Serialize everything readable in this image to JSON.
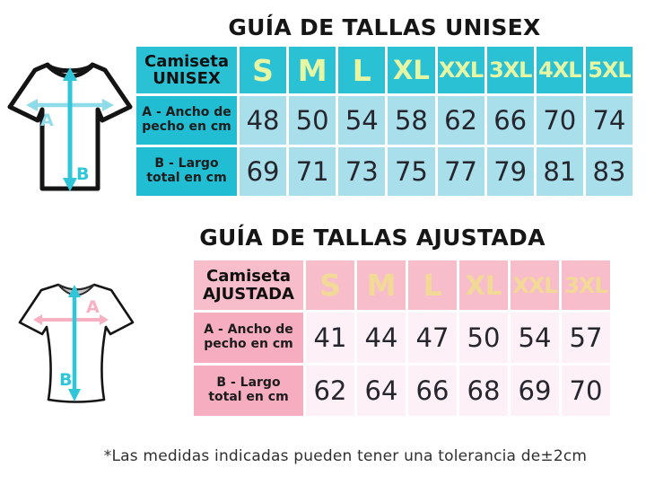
{
  "titles": {
    "unisex": "GUÍA DE TALLAS UNISEX",
    "ajustada": "GUÍA DE TALLAS AJUSTADA"
  },
  "footnote": "*Las medidas indicadas pueden tener una tolerancia de±2cm",
  "diagram": {
    "width_label": "A",
    "length_label": "B"
  },
  "colors": {
    "unisex_header_bg": "#2bc1d5",
    "unisex_label_bg": "#21bdd3",
    "unisex_cell_bg": "#a9dfeb",
    "unisex_size_text": "#e7f6a3",
    "ajustada_header_bg": "#f8bdcb",
    "ajustada_label_bg": "#f6adc0",
    "ajustada_cell_bg": "#fdf0f6",
    "ajustada_size_text": "#f3d996",
    "arrow_cyan": "#2fc6da",
    "arrow_cyan_light": "#8edce9",
    "arrow_pink": "#f7b1c2"
  },
  "chart_data": [
    {
      "type": "table",
      "title": "GUÍA DE TALLAS UNISEX",
      "header": {
        "label_line1": "Camiseta",
        "label_line2": "UNISEX",
        "sizes": [
          "S",
          "M",
          "L",
          "XL",
          "XXL",
          "3XL",
          "4XL",
          "5XL"
        ]
      },
      "rows": [
        {
          "label": "A - Ancho de pecho en cm",
          "values": [
            "48",
            "50",
            "54",
            "58",
            "62",
            "66",
            "70",
            "74"
          ]
        },
        {
          "label": "B - Largo total en cm",
          "values": [
            "69",
            "71",
            "73",
            "75",
            "77",
            "79",
            "81",
            "83"
          ]
        }
      ]
    },
    {
      "type": "table",
      "title": "GUÍA DE TALLAS AJUSTADA",
      "header": {
        "label_line1": "Camiseta",
        "label_line2": "AJUSTADA",
        "sizes": [
          "S",
          "M",
          "L",
          "XL",
          "XXL",
          "3XL"
        ]
      },
      "rows": [
        {
          "label": "A - Ancho de pecho en cm",
          "values": [
            "41",
            "44",
            "47",
            "50",
            "54",
            "57"
          ]
        },
        {
          "label": "B - Largo total en cm",
          "values": [
            "62",
            "64",
            "66",
            "68",
            "69",
            "70"
          ]
        }
      ]
    }
  ]
}
